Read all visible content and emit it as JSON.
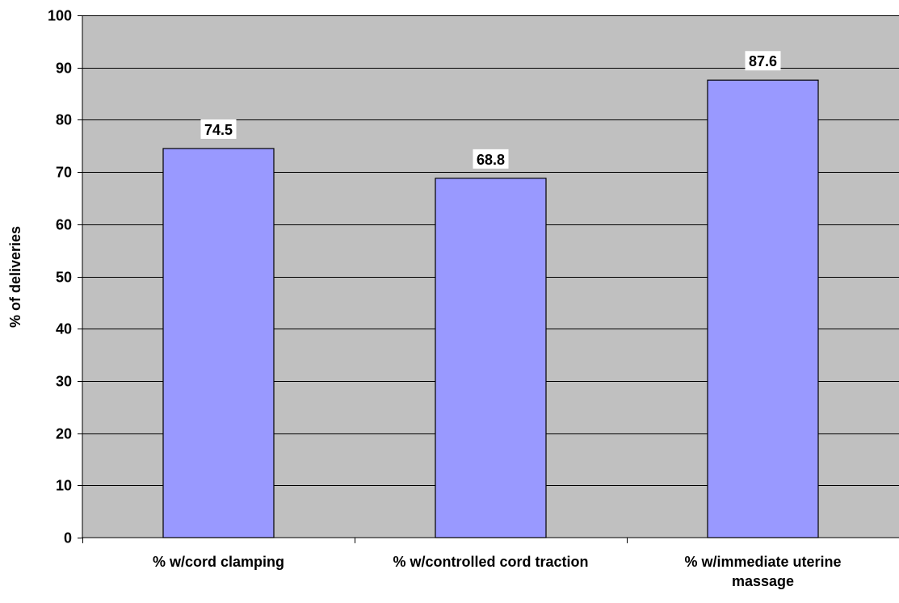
{
  "chart_data": {
    "type": "bar",
    "categories": [
      [
        "% w/cord clamping"
      ],
      [
        "% w/controlled cord traction"
      ],
      [
        "% w/immediate uterine",
        "massage"
      ]
    ],
    "values": [
      74.5,
      68.8,
      87.6
    ],
    "data_labels": [
      "74.5",
      "68.8",
      "87.6"
    ],
    "title": "",
    "xlabel": "",
    "ylabel": "% of deliveries",
    "ylim": [
      0,
      100
    ],
    "yticks": [
      0,
      10,
      20,
      30,
      40,
      50,
      60,
      70,
      80,
      90,
      100
    ],
    "grid": true,
    "legend": "none",
    "colors": {
      "plot_background": "#c0c0c0",
      "bar_fill": "#9999ff",
      "bar_stroke": "#000000",
      "gridline": "#000000",
      "axis": "#000000",
      "label_box": "#ffffff",
      "text": "#000000"
    }
  }
}
